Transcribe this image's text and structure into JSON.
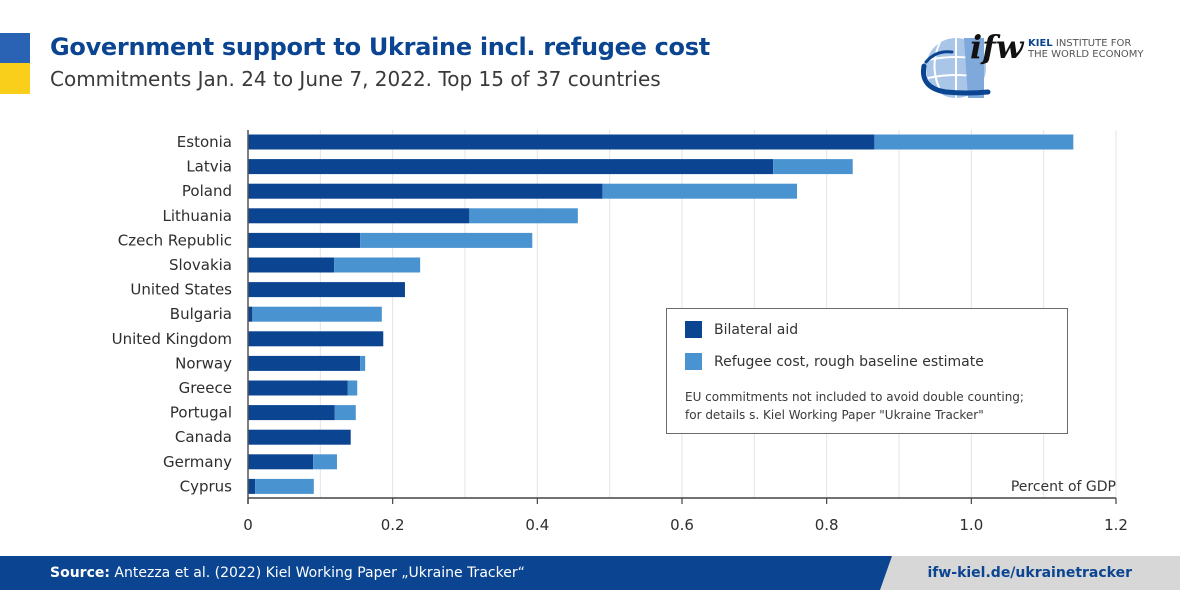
{
  "header": {
    "title": "Government support to Ukraine incl. refugee cost",
    "subtitle": "Commitments Jan. 24 to June 7, 2022. Top 15 of 37 countries"
  },
  "logo": {
    "mark": "ifw",
    "name_bold": "KIEL",
    "name_rest": " INSTITUTE FOR",
    "name_line2": "THE WORLD ECONOMY",
    "icon": "globe-swoosh-icon"
  },
  "colors": {
    "bilateral": "#0b4591",
    "refugee": "#4a93d1",
    "flag_blue": "#2b63b4",
    "flag_yellow": "#f9cf1b",
    "grid": "#e3e3e3"
  },
  "legend": {
    "items": [
      {
        "label": "Bilateral aid",
        "color": "#0b4591"
      },
      {
        "label": "Refugee cost, rough baseline estimate",
        "color": "#4a93d1"
      }
    ],
    "note_line1": "EU commitments not included to avoid double counting;",
    "note_line2": "for details s. Kiel Working Paper \"Ukraine Tracker\""
  },
  "footer": {
    "source_label": "Source:",
    "source_text": " Antezza et al. (2022) Kiel Working Paper „Ukraine Tracker“",
    "url": "ifw-kiel.de/ukrainetracker"
  },
  "chart_data": {
    "type": "bar",
    "orientation": "horizontal",
    "stacked": true,
    "title": "Government support to Ukraine incl. refugee cost",
    "subtitle": "Commitments Jan. 24 to June 7, 2022. Top 15 of 37 countries",
    "xlabel": "Percent of GDP",
    "ylabel": "",
    "xlim": [
      0,
      1.2
    ],
    "xticks": [
      0,
      0.2,
      0.4,
      0.6,
      0.8,
      1.0,
      1.2
    ],
    "xtick_labels": [
      "0",
      "0.2",
      "0.4",
      "0.6",
      "0.8",
      "1.0",
      "1.2"
    ],
    "minor_gridlines": [
      0.1,
      0.3,
      0.5,
      0.7,
      0.9,
      1.1
    ],
    "grid": true,
    "legend_position": "center-right",
    "categories": [
      "Estonia",
      "Latvia",
      "Poland",
      "Lithuania",
      "Czech Republic",
      "Slovakia",
      "United States",
      "Bulgaria",
      "United Kingdom",
      "Norway",
      "Greece",
      "Portugal",
      "Canada",
      "Germany",
      "Cyprus"
    ],
    "series": [
      {
        "name": "Bilateral aid",
        "values": [
          0.866,
          0.726,
          0.49,
          0.306,
          0.155,
          0.119,
          0.217,
          0.006,
          0.187,
          0.155,
          0.138,
          0.12,
          0.142,
          0.09,
          0.01
        ]
      },
      {
        "name": "Refugee cost, rough baseline estimate",
        "values": [
          0.275,
          0.11,
          0.269,
          0.15,
          0.238,
          0.119,
          0.0,
          0.179,
          0.0,
          0.007,
          0.013,
          0.029,
          0.0,
          0.033,
          0.081
        ]
      }
    ]
  }
}
